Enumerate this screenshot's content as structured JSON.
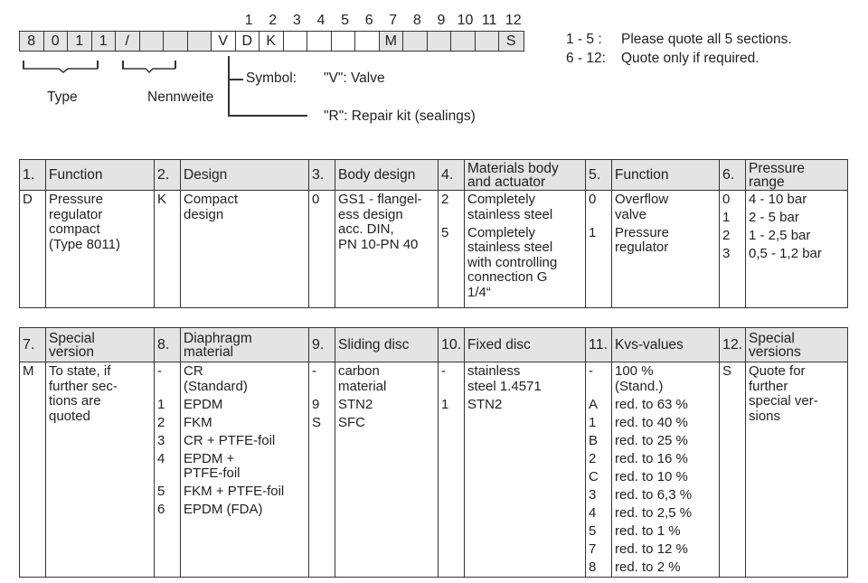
{
  "code": {
    "boxes": [
      {
        "v": "8",
        "gray": true
      },
      {
        "v": "0",
        "gray": true
      },
      {
        "v": "1",
        "gray": true
      },
      {
        "v": "1",
        "gray": true
      },
      {
        "v": "/",
        "gray": true
      },
      {
        "v": "",
        "gray": true
      },
      {
        "v": "",
        "gray": true
      },
      {
        "v": "",
        "gray": true
      },
      {
        "v": "V",
        "gray": false
      },
      {
        "v": "D",
        "gray": false
      },
      {
        "v": "K",
        "gray": false
      },
      {
        "v": "",
        "gray": false
      },
      {
        "v": "",
        "gray": false
      },
      {
        "v": "",
        "gray": false
      },
      {
        "v": "",
        "gray": false
      },
      {
        "v": "M",
        "gray": true
      },
      {
        "v": "",
        "gray": true
      },
      {
        "v": "",
        "gray": true
      },
      {
        "v": "",
        "gray": true
      },
      {
        "v": "",
        "gray": true
      },
      {
        "v": "S",
        "gray": true
      }
    ],
    "section_numbers": [
      "1",
      "2",
      "3",
      "4",
      "5",
      "6",
      "7",
      "8",
      "9",
      "10",
      "11",
      "12"
    ],
    "type_label": "Type",
    "nennweite_label": "Nennweite",
    "symbol_label": "Symbol:",
    "symbol_v": "\"V\": Valve",
    "symbol_r": "\"R\": Repair kit (sealings)",
    "note1_range": "1 - 5 :",
    "note1_text": "Please quote all 5 sections.",
    "note2_range": "6 - 12:",
    "note2_text": "Quote only if required."
  },
  "table1": [
    {
      "num": "1.",
      "label": "Function",
      "items": [
        {
          "c": "D",
          "d": "Pressure\nregulator\ncompact\n(Type 8011)"
        }
      ]
    },
    {
      "num": "2.",
      "label": "Design",
      "items": [
        {
          "c": "K",
          "d": "Compact\ndesign"
        }
      ]
    },
    {
      "num": "3.",
      "label": "Body design",
      "items": [
        {
          "c": "0",
          "d": "GS1 - flangel-\ness design\nacc. DIN,\nPN 10-PN 40"
        }
      ]
    },
    {
      "num": "4.",
      "label": "Materials body\nand actuator",
      "items": [
        {
          "c": "2",
          "d": "Completely\nstainless steel"
        },
        {
          "c": "5",
          "d": "Completely\nstainless steel\nwith controlling\nconnection G\n1/4“"
        }
      ]
    },
    {
      "num": "5.",
      "label": "Function",
      "items": [
        {
          "c": "0",
          "d": "Overflow\nvalve"
        },
        {
          "c": "1",
          "d": "Pressure\nregulator"
        }
      ]
    },
    {
      "num": "6.",
      "label": "Pressure\nrange",
      "items": [
        {
          "c": "0",
          "d": "4 - 10 bar"
        },
        {
          "c": "1",
          "d": "2 - 5 bar"
        },
        {
          "c": "2",
          "d": "1 - 2,5 bar"
        },
        {
          "c": "3",
          "d": "0,5 - 1,2 bar"
        }
      ]
    }
  ],
  "table2": [
    {
      "num": "7.",
      "label": "Special\nversion",
      "items": [
        {
          "c": "M",
          "d": "To state, if\nfurther sec-\ntions are\nquoted"
        }
      ]
    },
    {
      "num": "8.",
      "label": "Diaphragm\nmaterial",
      "items": [
        {
          "c": "-",
          "d": "CR\n(Standard)"
        },
        {
          "c": "1",
          "d": "EPDM"
        },
        {
          "c": "2",
          "d": "FKM"
        },
        {
          "c": "3",
          "d": "CR + PTFE-foil"
        },
        {
          "c": "4",
          "d": "EPDM +\nPTFE-foil"
        },
        {
          "c": "5",
          "d": "FKM + PTFE-foil"
        },
        {
          "c": "6",
          "d": "EPDM (FDA)"
        }
      ]
    },
    {
      "num": "9.",
      "label": "Sliding disc",
      "items": [
        {
          "c": "-",
          "d": "carbon\nmaterial"
        },
        {
          "c": "9",
          "d": "STN2"
        },
        {
          "c": "S",
          "d": "SFC"
        }
      ]
    },
    {
      "num": "10.",
      "label": "Fixed disc",
      "items": [
        {
          "c": "-",
          "d": "stainless\nsteel 1.4571"
        },
        {
          "c": "1",
          "d": "STN2"
        }
      ]
    },
    {
      "num": "11.",
      "label": "Kvs-values",
      "items": [
        {
          "c": "-",
          "d": "100 %\n(Stand.)"
        },
        {
          "c": "A",
          "d": "red. to 63 %"
        },
        {
          "c": "1",
          "d": "red. to 40 %"
        },
        {
          "c": "B",
          "d": "red. to 25 %"
        },
        {
          "c": "2",
          "d": "red. to 16 %"
        },
        {
          "c": "C",
          "d": "red. to 10 %"
        },
        {
          "c": "3",
          "d": "red. to 6,3 %"
        },
        {
          "c": "4",
          "d": "red. to 2,5 %"
        },
        {
          "c": "5",
          "d": "red. to 1 %"
        },
        {
          "c": "7",
          "d": "red. to 12 %"
        },
        {
          "c": "8",
          "d": "red. to 2 %"
        }
      ]
    },
    {
      "num": "12.",
      "label": "Special\nversions",
      "items": [
        {
          "c": "S",
          "d": "Quote for\nfurther\nspecial ver-\nsions"
        }
      ]
    }
  ]
}
